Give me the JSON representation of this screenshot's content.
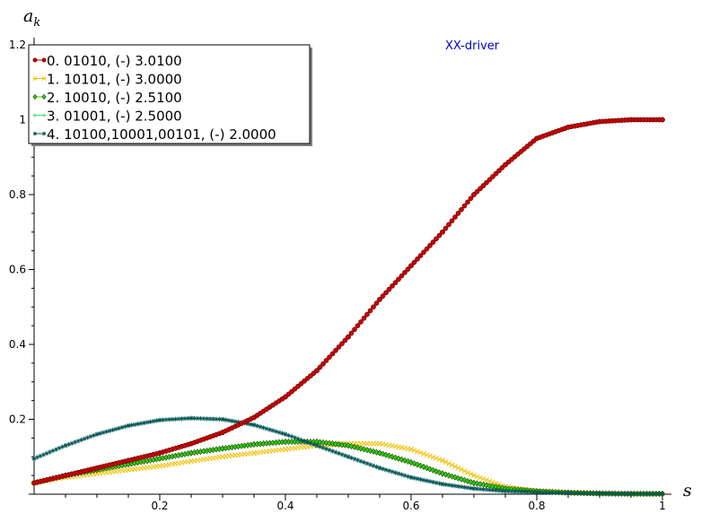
{
  "chart_data": {
    "type": "scatter",
    "title": "",
    "xlabel": "s",
    "ylabel": "a_k",
    "ylabel_display": "a",
    "ylabel_sub": "k",
    "annotation": "XX-driver",
    "annotation_color": "#0000cc",
    "xlim": [
      0,
      1
    ],
    "ylim": [
      0,
      1.2
    ],
    "x_ticks": [
      0.2,
      0.4,
      0.6,
      0.8,
      1
    ],
    "x_tick_labels": [
      "0.2",
      "0.4",
      "0.6",
      "0.8",
      "1"
    ],
    "y_ticks": [
      0.2,
      0.4,
      0.6,
      0.8,
      1,
      1.2
    ],
    "y_tick_labels": [
      "0.2",
      "0.4",
      "0.6",
      "0.8",
      "1",
      "1.2"
    ],
    "legend_position": "top-left",
    "grid": false,
    "series": [
      {
        "name": "0. 01010, (-) 3.0100",
        "color": "#cc0000",
        "marker": "circle",
        "x": [
          0,
          0.05,
          0.1,
          0.15,
          0.2,
          0.25,
          0.3,
          0.35,
          0.4,
          0.45,
          0.5,
          0.55,
          0.6,
          0.65,
          0.7,
          0.75,
          0.8,
          0.85,
          0.9,
          0.95,
          1
        ],
        "y": [
          0.03,
          0.05,
          0.07,
          0.09,
          0.11,
          0.135,
          0.165,
          0.205,
          0.26,
          0.33,
          0.42,
          0.52,
          0.61,
          0.7,
          0.8,
          0.88,
          0.95,
          0.98,
          0.995,
          1.0,
          1.0
        ]
      },
      {
        "name": "1. 10101, (-) 3.0000",
        "color": "#f0c000",
        "marker": "x",
        "x": [
          0,
          0.05,
          0.1,
          0.15,
          0.2,
          0.25,
          0.3,
          0.35,
          0.4,
          0.45,
          0.5,
          0.55,
          0.6,
          0.65,
          0.7,
          0.75,
          0.8,
          0.85,
          0.9,
          0.95,
          1
        ],
        "y": [
          0.03,
          0.045,
          0.055,
          0.065,
          0.075,
          0.088,
          0.1,
          0.11,
          0.12,
          0.13,
          0.135,
          0.135,
          0.12,
          0.09,
          0.05,
          0.02,
          0.008,
          0.004,
          0.002,
          0.001,
          0.001
        ]
      },
      {
        "name": "2. 10010, (-) 2.5100",
        "color": "#33cc00",
        "marker": "diamond",
        "x": [
          0,
          0.05,
          0.1,
          0.15,
          0.2,
          0.25,
          0.3,
          0.35,
          0.4,
          0.45,
          0.5,
          0.55,
          0.6,
          0.65,
          0.7,
          0.75,
          0.8,
          0.85,
          0.9,
          0.95,
          1
        ],
        "y": [
          0.03,
          0.05,
          0.065,
          0.08,
          0.095,
          0.11,
          0.122,
          0.133,
          0.14,
          0.14,
          0.13,
          0.11,
          0.085,
          0.055,
          0.03,
          0.015,
          0.008,
          0.004,
          0.002,
          0.001,
          0.001
        ]
      },
      {
        "name": "3. 01001, (-) 2.5000",
        "color": "#33dd66",
        "marker": "plus",
        "x": [
          0,
          0.05,
          0.1,
          0.15,
          0.2,
          0.25,
          0.3,
          0.35,
          0.4,
          0.45,
          0.5,
          0.55,
          0.6,
          0.65,
          0.7,
          0.75,
          0.8,
          0.85,
          0.9,
          0.95,
          1
        ],
        "y": [
          0.03,
          0.05,
          0.065,
          0.08,
          0.095,
          0.11,
          0.122,
          0.133,
          0.14,
          0.14,
          0.13,
          0.11,
          0.085,
          0.055,
          0.03,
          0.015,
          0.008,
          0.004,
          0.002,
          0.001,
          0.001
        ]
      },
      {
        "name": "4. 10100,10001,00101, (-) 2.0000",
        "color": "#005555",
        "marker": "star",
        "x": [
          0,
          0.05,
          0.1,
          0.15,
          0.2,
          0.25,
          0.3,
          0.35,
          0.4,
          0.45,
          0.5,
          0.55,
          0.6,
          0.65,
          0.7,
          0.75,
          0.8,
          0.85,
          0.9,
          0.95,
          1
        ],
        "y": [
          0.095,
          0.13,
          0.16,
          0.183,
          0.198,
          0.203,
          0.2,
          0.185,
          0.16,
          0.13,
          0.1,
          0.07,
          0.045,
          0.027,
          0.015,
          0.008,
          0.005,
          0.003,
          0.002,
          0.001,
          0.001
        ]
      }
    ]
  }
}
